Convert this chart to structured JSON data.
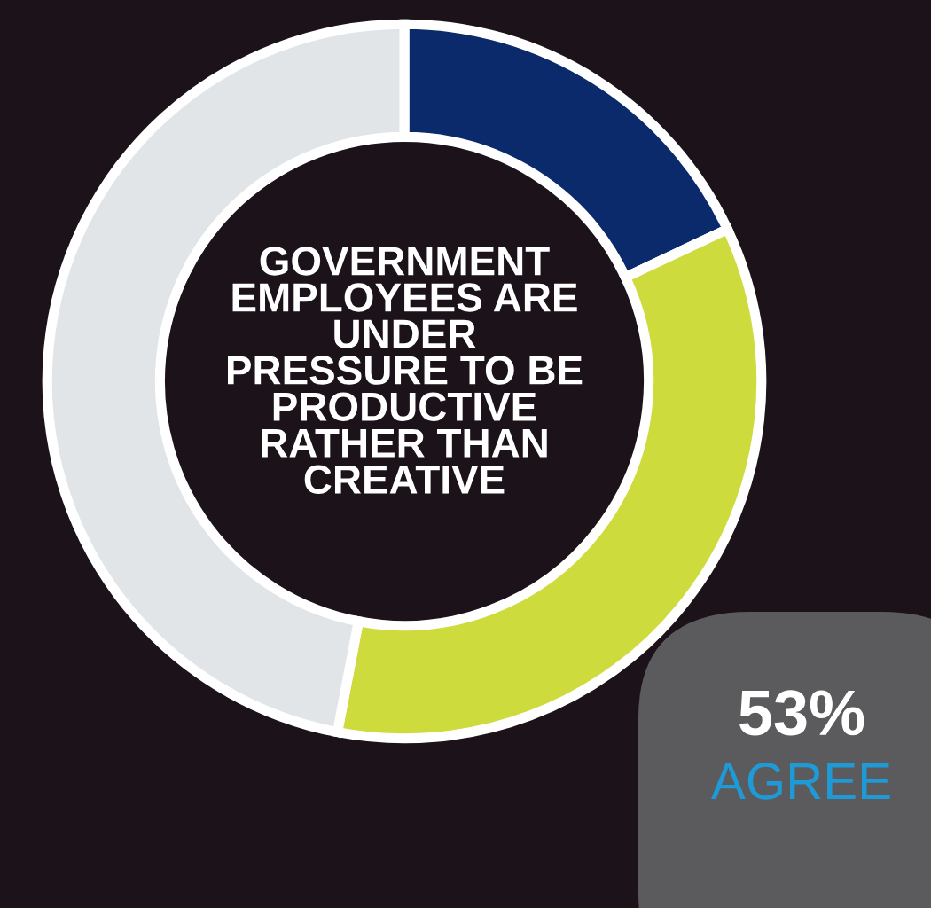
{
  "chart_data": {
    "type": "donut",
    "title": "GOVERNMENT\nEMPLOYEES ARE\nUNDER\nPRESSURE TO BE\nPRODUCTIVE\nRATHER THAN\nCREATIVE",
    "categories": [
      null,
      null,
      null
    ],
    "values": [
      18,
      35,
      47
    ],
    "colors": [
      "#0a2a6b",
      "#cedb3c",
      "#e2e5e8"
    ],
    "annotations": [
      "53%",
      "AGREE"
    ],
    "legend": false
  }
}
